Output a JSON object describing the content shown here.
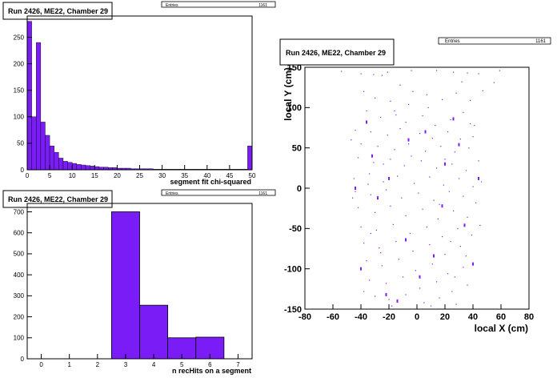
{
  "chart_data": [
    {
      "type": "bar",
      "title": "Run 2426, ME22, Chamber 29",
      "xlabel": "segment fit chi-squared",
      "ylabel": "",
      "stats": {
        "label": "Entries",
        "value": "1161"
      },
      "xlim": [
        0,
        50
      ],
      "ylim": [
        0,
        290
      ],
      "bin_width": 1,
      "x_ticks": [
        "0",
        "5",
        "10",
        "15",
        "20",
        "25",
        "30",
        "35",
        "40",
        "45",
        "50"
      ],
      "y_ticks": [
        "0",
        "50",
        "100",
        "150",
        "200",
        "250"
      ],
      "values": [
        280,
        100,
        240,
        90,
        65,
        45,
        33,
        22,
        16,
        14,
        12,
        10,
        9,
        8,
        7,
        6,
        5,
        5,
        4,
        4,
        3,
        3,
        3,
        2,
        2,
        2,
        2,
        2,
        1,
        1,
        1,
        1,
        1,
        1,
        1,
        1,
        1,
        1,
        1,
        1,
        1,
        1,
        1,
        1,
        1,
        1,
        1,
        1,
        1,
        45
      ],
      "color": "#7a1cf5"
    },
    {
      "type": "bar",
      "title": "Run 2426, ME22, Chamber 29",
      "xlabel": "n recHits on a segment",
      "ylabel": "",
      "stats": {
        "label": "Entries",
        "value": "1161"
      },
      "xlim": [
        -0.5,
        7.5
      ],
      "ylim": [
        0,
        740
      ],
      "x_ticks": [
        "0",
        "1",
        "2",
        "3",
        "4",
        "5",
        "6",
        "7"
      ],
      "y_ticks": [
        "0",
        "100",
        "200",
        "300",
        "400",
        "500",
        "600",
        "700"
      ],
      "bins": [
        {
          "x": 3,
          "value": 700
        },
        {
          "x": 4,
          "value": 255
        },
        {
          "x": 5,
          "value": 100
        },
        {
          "x": 6,
          "value": 103
        }
      ],
      "color": "#7a1cf5"
    },
    {
      "type": "scatter",
      "title": "Run 2426, ME22, Chamber 29",
      "xlabel": "local X (cm)",
      "ylabel": "local Y (cm)",
      "stats": {
        "label": "Entries",
        "value": "1161"
      },
      "xlim": [
        -80,
        80
      ],
      "ylim": [
        -150,
        150
      ],
      "x_ticks": [
        "-80",
        "-60",
        "-40",
        "-20",
        "0",
        "20",
        "40",
        "60",
        "80"
      ],
      "y_ticks": [
        "-150",
        "-100",
        "-50",
        "0",
        "50",
        "100",
        "150"
      ],
      "color": "#7a1cf5",
      "points": [
        [
          -54,
          145
        ],
        [
          -40,
          142
        ],
        [
          -31,
          141
        ],
        [
          -21,
          144
        ],
        [
          -4,
          146
        ],
        [
          14,
          146
        ],
        [
          26,
          144
        ],
        [
          36,
          143
        ],
        [
          44,
          142
        ],
        [
          59,
          146
        ],
        [
          -38,
          120
        ],
        [
          -30,
          112
        ],
        [
          -19,
          108
        ],
        [
          -6,
          104
        ],
        [
          7,
          116
        ],
        [
          18,
          110
        ],
        [
          28,
          118
        ],
        [
          38,
          109
        ],
        [
          47,
          121
        ],
        [
          55,
          131
        ],
        [
          -36,
          96
        ],
        [
          -26,
          88
        ],
        [
          -15,
          91
        ],
        [
          -8,
          82
        ],
        [
          4,
          90
        ],
        [
          13,
          78
        ],
        [
          24,
          85
        ],
        [
          33,
          94
        ],
        [
          41,
          78
        ],
        [
          -44,
          72
        ],
        [
          -33,
          70
        ],
        [
          -21,
          66
        ],
        [
          -12,
          74
        ],
        [
          2,
          68
        ],
        [
          11,
          62
        ],
        [
          22,
          70
        ],
        [
          31,
          61
        ],
        [
          40,
          64
        ],
        [
          -40,
          55
        ],
        [
          -28,
          52
        ],
        [
          -16,
          48
        ],
        [
          -6,
          55
        ],
        [
          6,
          46
        ],
        [
          17,
          52
        ],
        [
          27,
          45
        ],
        [
          37,
          50
        ],
        [
          -42,
          38
        ],
        [
          -31,
          32
        ],
        [
          -19,
          36
        ],
        [
          -9,
          28
        ],
        [
          3,
          34
        ],
        [
          14,
          25
        ],
        [
          25,
          30
        ],
        [
          35,
          22
        ],
        [
          44,
          34
        ],
        [
          -45,
          12
        ],
        [
          -34,
          18
        ],
        [
          -24,
          8
        ],
        [
          -14,
          15
        ],
        [
          -2,
          6
        ],
        [
          9,
          14
        ],
        [
          19,
          4
        ],
        [
          30,
          12
        ],
        [
          40,
          2
        ],
        [
          -44,
          -4
        ],
        [
          -33,
          -8
        ],
        [
          -22,
          -2
        ],
        [
          -11,
          -12
        ],
        [
          1,
          -6
        ],
        [
          12,
          -15
        ],
        [
          23,
          -4
        ],
        [
          33,
          -10
        ],
        [
          42,
          -18
        ],
        [
          -42,
          -24
        ],
        [
          -30,
          -30
        ],
        [
          -19,
          -22
        ],
        [
          -8,
          -34
        ],
        [
          4,
          -26
        ],
        [
          15,
          -38
        ],
        [
          26,
          -28
        ],
        [
          36,
          -36
        ],
        [
          -40,
          -48
        ],
        [
          -29,
          -52
        ],
        [
          -17,
          -45
        ],
        [
          -5,
          -56
        ],
        [
          7,
          -48
        ],
        [
          18,
          -60
        ],
        [
          29,
          -50
        ],
        [
          39,
          -58
        ],
        [
          -38,
          -68
        ],
        [
          -27,
          -74
        ],
        [
          -15,
          -66
        ],
        [
          -3,
          -78
        ],
        [
          9,
          -70
        ],
        [
          20,
          -82
        ],
        [
          31,
          -72
        ],
        [
          -36,
          -90
        ],
        [
          -25,
          -96
        ],
        [
          -13,
          -88
        ],
        [
          -1,
          -102
        ],
        [
          11,
          -94
        ],
        [
          22,
          -106
        ],
        [
          33,
          -98
        ],
        [
          -34,
          -114
        ],
        [
          -22,
          -118
        ],
        [
          -10,
          -110
        ],
        [
          2,
          -124
        ],
        [
          14,
          -116
        ],
        [
          25,
          -128
        ],
        [
          36,
          -120
        ],
        [
          -30,
          -134
        ],
        [
          -20,
          -138
        ],
        [
          -8,
          -132
        ],
        [
          5,
          -142
        ],
        [
          16,
          -136
        ],
        [
          28,
          -144
        ],
        [
          -18,
          -146
        ],
        [
          -25,
          140
        ],
        [
          -12,
          128
        ],
        [
          32,
          132
        ],
        [
          -46,
          -12
        ],
        [
          -47,
          60
        ],
        [
          45,
          -46
        ],
        [
          46,
          8
        ],
        [
          -3,
          120
        ],
        [
          10,
          -146
        ],
        [
          -35,
          5
        ],
        [
          20,
          36
        ],
        [
          -26,
          -80
        ],
        [
          27,
          -110
        ],
        [
          -16,
          96
        ],
        [
          35,
          -84
        ],
        [
          -38,
          -128
        ],
        [
          8,
          100
        ],
        [
          -4,
          40
        ],
        [
          16,
          -20
        ],
        [
          -24,
          30
        ],
        [
          38,
          80
        ],
        [
          -33,
          -56
        ],
        [
          24,
          -66
        ]
      ],
      "highlight": [
        [
          -44,
          0
        ],
        [
          -32,
          40
        ],
        [
          -20,
          12
        ],
        [
          -8,
          -64
        ],
        [
          6,
          70
        ],
        [
          18,
          -22
        ],
        [
          30,
          54
        ],
        [
          40,
          -94
        ],
        [
          -40,
          -100
        ],
        [
          -22,
          -132
        ],
        [
          -14,
          -140
        ],
        [
          12,
          -84
        ],
        [
          26,
          86
        ],
        [
          -28,
          -12
        ],
        [
          34,
          -46
        ],
        [
          -6,
          60
        ],
        [
          44,
          12
        ],
        [
          -36,
          82
        ],
        [
          2,
          -110
        ],
        [
          20,
          30
        ]
      ]
    }
  ]
}
